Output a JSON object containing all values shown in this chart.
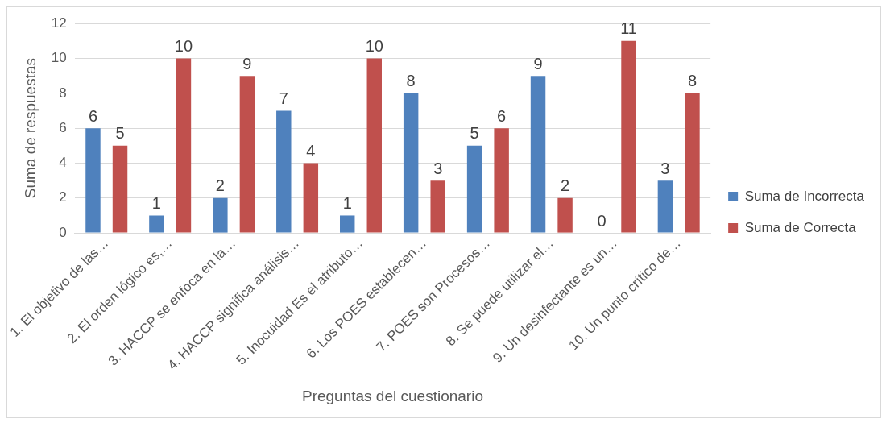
{
  "chart_data": {
    "type": "bar",
    "xlabel": "Preguntas del cuestionario",
    "ylabel": "Suma de respuestas",
    "categories": [
      "1. El objetivo de las…",
      "2. El orden lógico es,…",
      "3. HACCP se enfoca en la…",
      "4. HACCP significa análisis…",
      "5. Inocuidad Es el atributo…",
      "6. Los POES establecen…",
      "7. POES son Procesos…",
      "8. Se puede utilizar el…",
      "9. Un desinfectante es un…",
      "10. Un punto crítico de…"
    ],
    "series": [
      {
        "name": "Suma de Incorrecta",
        "color": "#4f81bd",
        "values": [
          6,
          1,
          2,
          7,
          1,
          8,
          5,
          9,
          0,
          3
        ]
      },
      {
        "name": "Suma de Correcta",
        "color": "#c0504d",
        "values": [
          5,
          10,
          9,
          4,
          10,
          3,
          6,
          2,
          11,
          8
        ]
      }
    ],
    "ylim": [
      0,
      12
    ],
    "yticks": [
      0,
      2,
      4,
      6,
      8,
      10,
      12
    ],
    "grid": "y",
    "legend": "right",
    "data_labels": true
  }
}
